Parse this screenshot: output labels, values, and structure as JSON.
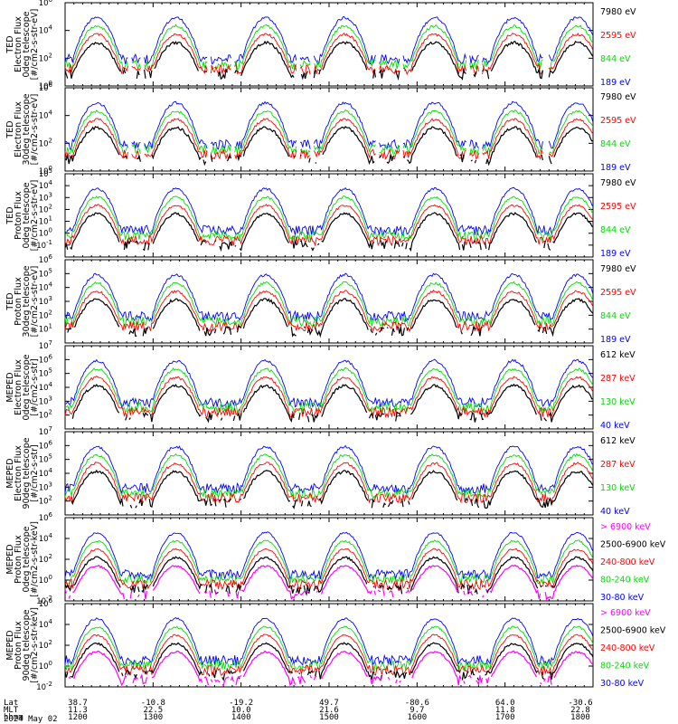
{
  "figure": {
    "date_label": "2024 May 02"
  },
  "footer": {
    "row_labels": [
      "Lat",
      "MLT",
      "hhmm"
    ],
    "columns": [
      {
        "lat": "38.7",
        "mlt": "11.3",
        "hhmm": "1200"
      },
      {
        "lat": "-10.8",
        "mlt": "22.5",
        "hhmm": "1300"
      },
      {
        "lat": "-19.2",
        "mlt": "10.0",
        "hhmm": "1400"
      },
      {
        "lat": "49.7",
        "mlt": "21.6",
        "hhmm": "1500"
      },
      {
        "lat": "-80.6",
        "mlt": "9.7",
        "hhmm": "1600"
      },
      {
        "lat": "64.0",
        "mlt": "11.8",
        "hhmm": "1700"
      },
      {
        "lat": "-30.6",
        "mlt": "22.8",
        "hhmm": "1800"
      }
    ]
  },
  "colors": {
    "black": "#000000",
    "red": "#ff0000",
    "green": "#00dd00",
    "blue": "#0000ff",
    "magenta": "#ff00ff"
  },
  "chart_data": [
    {
      "type": "line",
      "ylabel": [
        "TED",
        "Electron Flux",
        "0deg telescope",
        "[#/cm2-s-str-eV]"
      ],
      "ylim_exp": [
        0,
        6
      ],
      "ytick_exps": [
        0,
        2,
        4,
        6
      ],
      "ylog": true,
      "series": [
        {
          "name": "7980 eV",
          "color": "#000000"
        },
        {
          "name": "2595 eV",
          "color": "#ff0000"
        },
        {
          "name": "844 eV",
          "color": "#00dd00"
        },
        {
          "name": "189 eV",
          "color": "#0000ff"
        }
      ]
    },
    {
      "type": "line",
      "ylabel": [
        "TED",
        "Electron Flux",
        "30deg telescope",
        "[#/cm2-s-str-eV]"
      ],
      "ylim_exp": [
        0,
        6
      ],
      "ytick_exps": [
        0,
        2,
        4,
        6
      ],
      "ylog": true,
      "series": [
        {
          "name": "7980 eV",
          "color": "#000000"
        },
        {
          "name": "2595 eV",
          "color": "#ff0000"
        },
        {
          "name": "844 eV",
          "color": "#00dd00"
        },
        {
          "name": "189 eV",
          "color": "#0000ff"
        }
      ]
    },
    {
      "type": "line",
      "ylabel": [
        "TED",
        "Proton Flux",
        "0deg telescope",
        "[#/cm2-s-str-eV]"
      ],
      "ylim_exp": [
        -2,
        5
      ],
      "ytick_exps": [
        -1,
        0,
        1,
        2,
        3,
        4,
        5
      ],
      "ylog": true,
      "series": [
        {
          "name": "7980 eV",
          "color": "#000000"
        },
        {
          "name": "2595 eV",
          "color": "#ff0000"
        },
        {
          "name": "844 eV",
          "color": "#00dd00"
        },
        {
          "name": "189 eV",
          "color": "#0000ff"
        }
      ]
    },
    {
      "type": "line",
      "ylabel": [
        "TED",
        "Proton Flux",
        "30deg telescope",
        "[#/cm2-s-str-eV]"
      ],
      "ylim_exp": [
        0,
        6
      ],
      "ytick_exps": [
        1,
        2,
        3,
        4,
        5,
        6
      ],
      "ylog": true,
      "series": [
        {
          "name": "7980 eV",
          "color": "#000000"
        },
        {
          "name": "2595 eV",
          "color": "#ff0000"
        },
        {
          "name": "844 eV",
          "color": "#00dd00"
        },
        {
          "name": "189 eV",
          "color": "#0000ff"
        }
      ]
    },
    {
      "type": "line",
      "ylabel": [
        "MEPED",
        "Electron Flux",
        "0deg telescope",
        "[#/cm2-s-str]"
      ],
      "ylim_exp": [
        1,
        7
      ],
      "ytick_exps": [
        2,
        3,
        4,
        5,
        6,
        7
      ],
      "ylog": true,
      "series": [
        {
          "name": "612 keV",
          "color": "#000000"
        },
        {
          "name": "287 keV",
          "color": "#ff0000"
        },
        {
          "name": "130 keV",
          "color": "#00dd00"
        },
        {
          "name": "40 keV",
          "color": "#0000ff"
        }
      ]
    },
    {
      "type": "line",
      "ylabel": [
        "MEPED",
        "Electron Flux",
        "90deg telescope",
        "[#/cm2-s-str]"
      ],
      "ylim_exp": [
        1,
        7
      ],
      "ytick_exps": [
        2,
        3,
        4,
        5,
        6,
        7
      ],
      "ylog": true,
      "series": [
        {
          "name": "612 keV",
          "color": "#000000"
        },
        {
          "name": "287 keV",
          "color": "#ff0000"
        },
        {
          "name": "130 keV",
          "color": "#00dd00"
        },
        {
          "name": "40 keV",
          "color": "#0000ff"
        }
      ]
    },
    {
      "type": "line",
      "ylabel": [
        "MEPED",
        "Proton Flux",
        "0deg telescope",
        "[#/cm2-s-str-keV]"
      ],
      "ylim_exp": [
        -2,
        6
      ],
      "ytick_exps": [
        -2,
        0,
        2,
        4,
        6
      ],
      "ylog": true,
      "series": [
        {
          "name": "> 6900 keV",
          "color": "#ff00ff"
        },
        {
          "name": "2500-6900 keV",
          "color": "#000000"
        },
        {
          "name": "240-800 keV",
          "color": "#ff0000"
        },
        {
          "name": "80-240 keV",
          "color": "#00dd00"
        },
        {
          "name": "30-80 keV",
          "color": "#0000ff"
        }
      ]
    },
    {
      "type": "line",
      "ylabel": [
        "MEPED",
        "Proton Flux",
        "90deg telescope",
        "[#/cm2-s-str-keV]"
      ],
      "ylim_exp": [
        -2,
        6
      ],
      "ytick_exps": [
        -2,
        0,
        2,
        4,
        6
      ],
      "ylog": true,
      "series": [
        {
          "name": "> 6900 keV",
          "color": "#ff00ff"
        },
        {
          "name": "2500-6900 keV",
          "color": "#000000"
        },
        {
          "name": "240-800 keV",
          "color": "#ff0000"
        },
        {
          "name": "80-240 keV",
          "color": "#00dd00"
        },
        {
          "name": "30-80 keV",
          "color": "#0000ff"
        }
      ]
    }
  ]
}
